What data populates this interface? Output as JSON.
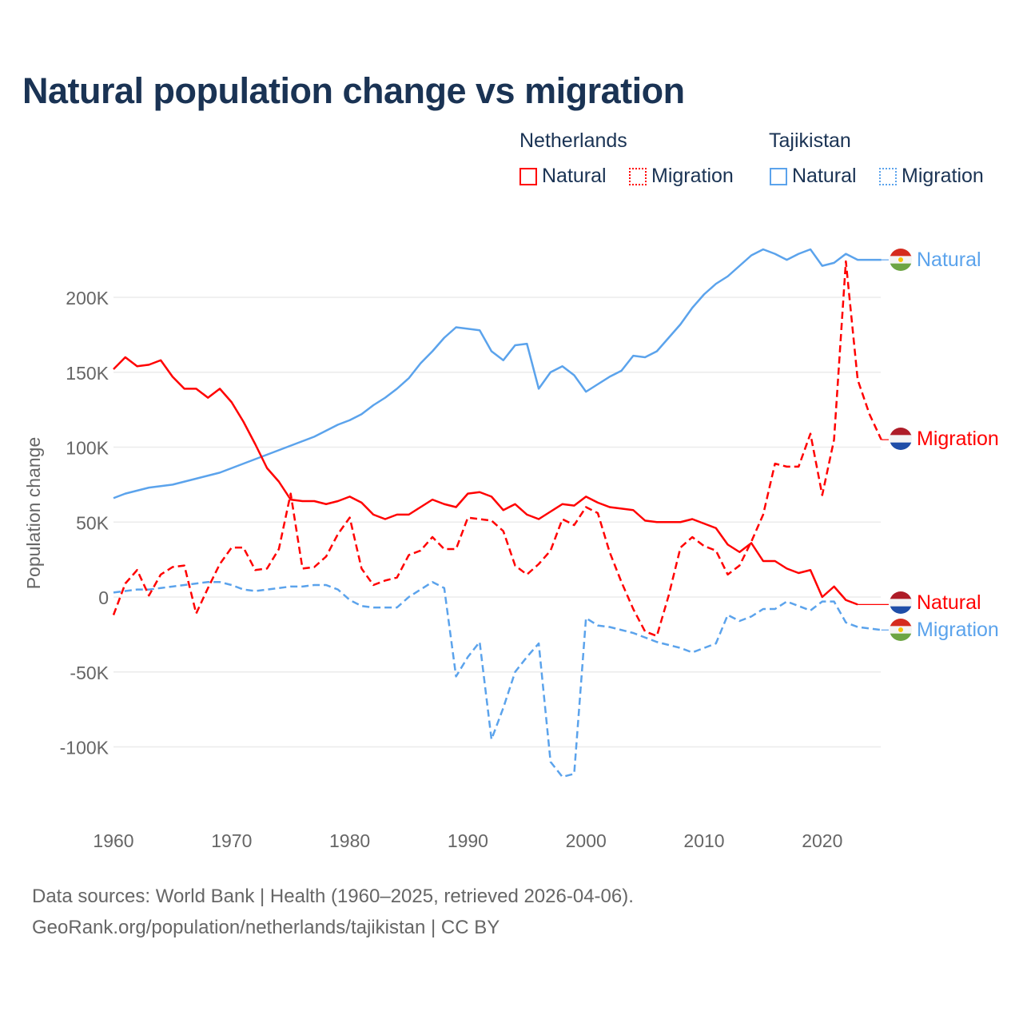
{
  "title": "Natural population change vs migration",
  "legend": {
    "groups": [
      {
        "name": "Netherlands",
        "color": "#ff0000",
        "items": [
          "Natural",
          "Migration"
        ]
      },
      {
        "name": "Tajikistan",
        "color": "#5ba3ec",
        "items": [
          "Natural",
          "Migration"
        ]
      }
    ]
  },
  "source": {
    "line1": "Data sources: World Bank | Health (1960–2025, retrieved 2026-04-06).",
    "line2": "GeoRank.org/population/netherlands/tajikistan | CC BY"
  },
  "chart_data": {
    "type": "line",
    "title": "Natural population change vs migration",
    "xlabel": "",
    "ylabel": "Population change",
    "xlim": [
      1960,
      2025
    ],
    "ylim": [
      -130000,
      240000
    ],
    "xticks": [
      1960,
      1970,
      1980,
      1990,
      2000,
      2010,
      2020
    ],
    "xtick_labels": [
      "1960",
      "1970",
      "1980",
      "1990",
      "2000",
      "2010",
      "2020"
    ],
    "yticks": [
      -100000,
      -50000,
      0,
      50000,
      100000,
      150000,
      200000
    ],
    "ytick_labels": [
      "-100K",
      "-50K",
      "0",
      "50K",
      "100K",
      "150K",
      "200K"
    ],
    "grid": true,
    "x_start": 1960,
    "series": [
      {
        "name": "Netherlands Natural",
        "country": "Netherlands",
        "label": "Natural",
        "color": "#ff0000",
        "dash": false,
        "extend_to": 2025,
        "values": [
          152,
          160,
          154,
          155,
          158,
          147,
          139,
          139,
          133,
          139,
          130,
          117,
          102,
          86,
          77,
          65,
          64,
          64,
          62,
          64,
          67,
          63,
          55,
          52,
          55,
          55,
          60,
          65,
          62,
          60,
          69,
          70,
          67,
          58,
          62,
          55,
          52,
          57,
          62,
          61,
          67,
          63,
          60,
          59,
          58,
          51,
          50,
          50,
          50,
          52,
          49,
          46,
          35,
          30,
          36,
          24,
          24,
          19,
          16,
          18,
          0,
          7,
          -2,
          -5
        ]
      },
      {
        "name": "Netherlands Migration",
        "country": "Netherlands",
        "label": "Migration",
        "color": "#ff0000",
        "dash": true,
        "values": [
          -12,
          9,
          18,
          1,
          15,
          20,
          21,
          -11,
          6,
          22,
          33,
          33,
          18,
          19,
          32,
          69,
          19,
          20,
          27,
          42,
          53,
          19,
          8,
          11,
          13,
          28,
          31,
          40,
          32,
          32,
          53,
          52,
          51,
          44,
          21,
          15,
          22,
          31,
          52,
          48,
          60,
          56,
          30,
          10,
          -8,
          -23,
          -26,
          1,
          33,
          40,
          34,
          31,
          15,
          21,
          37,
          55,
          89,
          87,
          87,
          109,
          68,
          105,
          224,
          145,
          122,
          105
        ]
      },
      {
        "name": "Tajikistan Natural",
        "country": "Tajikistan",
        "label": "Natural",
        "color": "#5ba3ec",
        "dash": false,
        "values": [
          66,
          69,
          71,
          73,
          74,
          75,
          77,
          79,
          81,
          83,
          86,
          89,
          92,
          95,
          98,
          101,
          104,
          107,
          111,
          115,
          118,
          122,
          128,
          133,
          139,
          146,
          156,
          164,
          173,
          180,
          179,
          178,
          164,
          158,
          168,
          169,
          139,
          150,
          154,
          148,
          137,
          142,
          147,
          151,
          161,
          160,
          164,
          173,
          182,
          193,
          202,
          209,
          214,
          221,
          228,
          232,
          229,
          225,
          229,
          232,
          221,
          223,
          229,
          225,
          225,
          225
        ]
      },
      {
        "name": "Tajikistan Migration",
        "country": "Tajikistan",
        "label": "Migration",
        "color": "#5ba3ec",
        "dash": true,
        "values": [
          3,
          4,
          5,
          5,
          6,
          7,
          8,
          9,
          10,
          10,
          8,
          5,
          4,
          5,
          6,
          7,
          7,
          8,
          8,
          5,
          -2,
          -6,
          -7,
          -7,
          -7,
          0,
          5,
          10,
          6,
          -53,
          -40,
          -30,
          -95,
          -74,
          -50,
          -40,
          -31,
          -110,
          -120,
          -118,
          -14,
          -19,
          -20,
          -22,
          -24,
          -27,
          -30,
          -32,
          -34,
          -37,
          -34,
          -31,
          -12,
          -16,
          -13,
          -8,
          -8,
          -3,
          -6,
          -9,
          -3,
          -3,
          -17,
          -20,
          -21,
          -22
        ]
      }
    ],
    "value_unit": "thousands"
  }
}
